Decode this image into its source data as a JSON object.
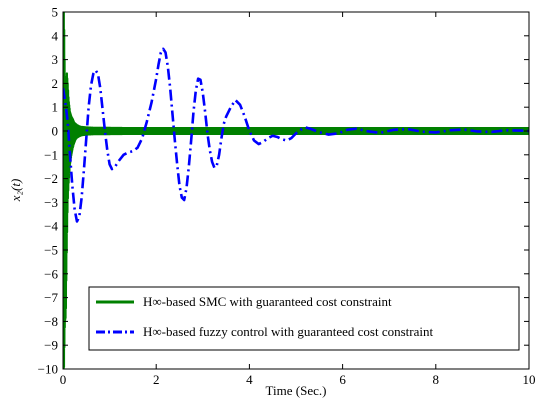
{
  "chart_data": {
    "type": "line",
    "xlabel": "Time (Sec.)",
    "ylabel": "x₂(t)",
    "xlim": [
      0,
      10
    ],
    "ylim": [
      -10,
      5
    ],
    "x_ticks": [
      0,
      2,
      4,
      6,
      8,
      10
    ],
    "y_ticks": [
      5,
      4,
      3,
      2,
      1,
      0,
      -1,
      -2,
      -3,
      -4,
      -5,
      -6,
      -7,
      -8,
      -9,
      -10
    ],
    "grid": false,
    "legend_position": "bottom-center",
    "series": [
      {
        "name": "H∞-based SMC with guaranteed cost constraint",
        "color": "#008000",
        "line_style": "solid",
        "chattering": true,
        "envelope_time": [
          0,
          0.02,
          0.04,
          0.06,
          0.08,
          0.1,
          0.12,
          0.15,
          0.18,
          0.21,
          0.24,
          0.27,
          0.3,
          0.35,
          0.4,
          0.5,
          0.6,
          0.7,
          0.8,
          1.0,
          1.5,
          2.5,
          10
        ],
        "envelope_upper": [
          5,
          5,
          2.0,
          1.6,
          2.5,
          2.0,
          1.3,
          0.8,
          0.6,
          0.5,
          0.35,
          0.3,
          0.25,
          0.2,
          0.17,
          0.15,
          0.14,
          0.13,
          0.13,
          0.13,
          0.12,
          0.12,
          0.12
        ],
        "envelope_lower": [
          -10,
          -10,
          -8.0,
          -7.8,
          -5.0,
          -3.0,
          -2.2,
          -1.4,
          -1.0,
          -0.7,
          -0.5,
          -0.35,
          -0.28,
          -0.22,
          -0.18,
          -0.15,
          -0.14,
          -0.13,
          -0.13,
          -0.13,
          -0.12,
          -0.12,
          -0.12
        ]
      },
      {
        "name": "H∞-based fuzzy control with guaranteed cost constraint",
        "color": "#0000ff",
        "line_style": "dash-dot",
        "x": [
          0,
          0.05,
          0.1,
          0.15,
          0.2,
          0.25,
          0.3,
          0.35,
          0.4,
          0.45,
          0.5,
          0.55,
          0.6,
          0.65,
          0.7,
          0.75,
          0.8,
          0.85,
          0.9,
          0.95,
          1.0,
          1.05,
          1.1,
          1.15,
          1.2,
          1.3,
          1.4,
          1.5,
          1.6,
          1.7,
          1.8,
          1.9,
          2.0,
          2.05,
          2.1,
          2.15,
          2.2,
          2.25,
          2.3,
          2.35,
          2.4,
          2.45,
          2.5,
          2.55,
          2.6,
          2.65,
          2.7,
          2.75,
          2.8,
          2.85,
          2.9,
          2.95,
          3.0,
          3.05,
          3.1,
          3.15,
          3.2,
          3.25,
          3.3,
          3.35,
          3.4,
          3.45,
          3.5,
          3.6,
          3.7,
          3.8,
          3.9,
          4.0,
          4.1,
          4.2,
          4.3,
          4.4,
          4.5,
          4.6,
          4.7,
          4.8,
          4.9,
          5.0,
          5.1,
          5.2,
          5.3,
          5.5,
          5.7,
          5.9,
          6.1,
          6.3,
          6.5,
          6.8,
          7.1,
          7.4,
          7.7,
          8.0,
          8.3,
          8.6,
          8.9,
          9.2,
          9.5,
          9.8,
          10.0
        ],
        "y": [
          1.8,
          1.2,
          0.4,
          -1.0,
          -2.3,
          -3.3,
          -3.8,
          -3.6,
          -2.8,
          -1.6,
          -0.3,
          1.0,
          1.9,
          2.4,
          2.55,
          2.4,
          1.8,
          0.9,
          0.0,
          -0.8,
          -1.4,
          -1.6,
          -1.55,
          -1.4,
          -1.25,
          -1.0,
          -0.9,
          -0.85,
          -0.7,
          -0.3,
          0.4,
          1.2,
          2.2,
          2.8,
          3.3,
          3.45,
          3.3,
          2.7,
          1.8,
          0.7,
          -0.4,
          -1.4,
          -2.3,
          -2.8,
          -2.9,
          -2.4,
          -1.5,
          -0.4,
          0.8,
          1.7,
          2.2,
          2.15,
          1.6,
          0.8,
          -0.1,
          -0.8,
          -1.3,
          -1.55,
          -1.45,
          -1.0,
          -0.3,
          0.3,
          0.6,
          1.0,
          1.3,
          1.1,
          0.6,
          0.0,
          -0.4,
          -0.55,
          -0.45,
          -0.3,
          -0.2,
          -0.25,
          -0.35,
          -0.4,
          -0.3,
          -0.1,
          0.05,
          0.15,
          0.1,
          -0.05,
          -0.15,
          -0.1,
          0.05,
          0.1,
          0.0,
          -0.08,
          0.05,
          0.08,
          -0.03,
          -0.06,
          0.03,
          0.06,
          -0.02,
          -0.04,
          0.03,
          0.02,
          0.0
        ]
      }
    ]
  }
}
